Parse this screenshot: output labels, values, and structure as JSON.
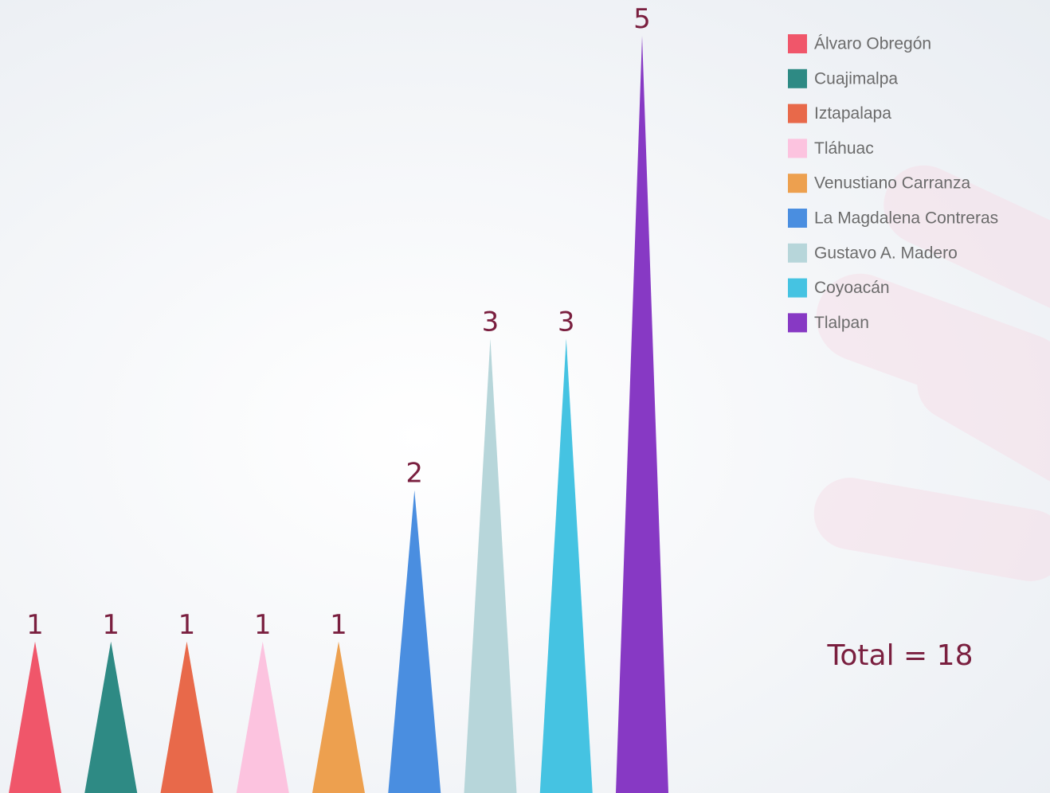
{
  "chart_data": {
    "type": "spike",
    "categories": [
      "Álvaro Obregón",
      "Cuajimalpa",
      "Iztapalapa",
      "Tláhuac",
      "Venustiano Carranza",
      "La Magdalena Contreras",
      "Gustavo A. Madero",
      "Coyoacán",
      "Tlalpan"
    ],
    "values": [
      1,
      1,
      1,
      1,
      1,
      2,
      3,
      3,
      5
    ],
    "colors": [
      "#f0566a",
      "#2e8a84",
      "#e8694a",
      "#fcc3df",
      "#eda04f",
      "#4a8ee0",
      "#b7d6da",
      "#45c3e2",
      "#8739c4"
    ],
    "legend": "top-right",
    "annotation": "Total = 18"
  }
}
